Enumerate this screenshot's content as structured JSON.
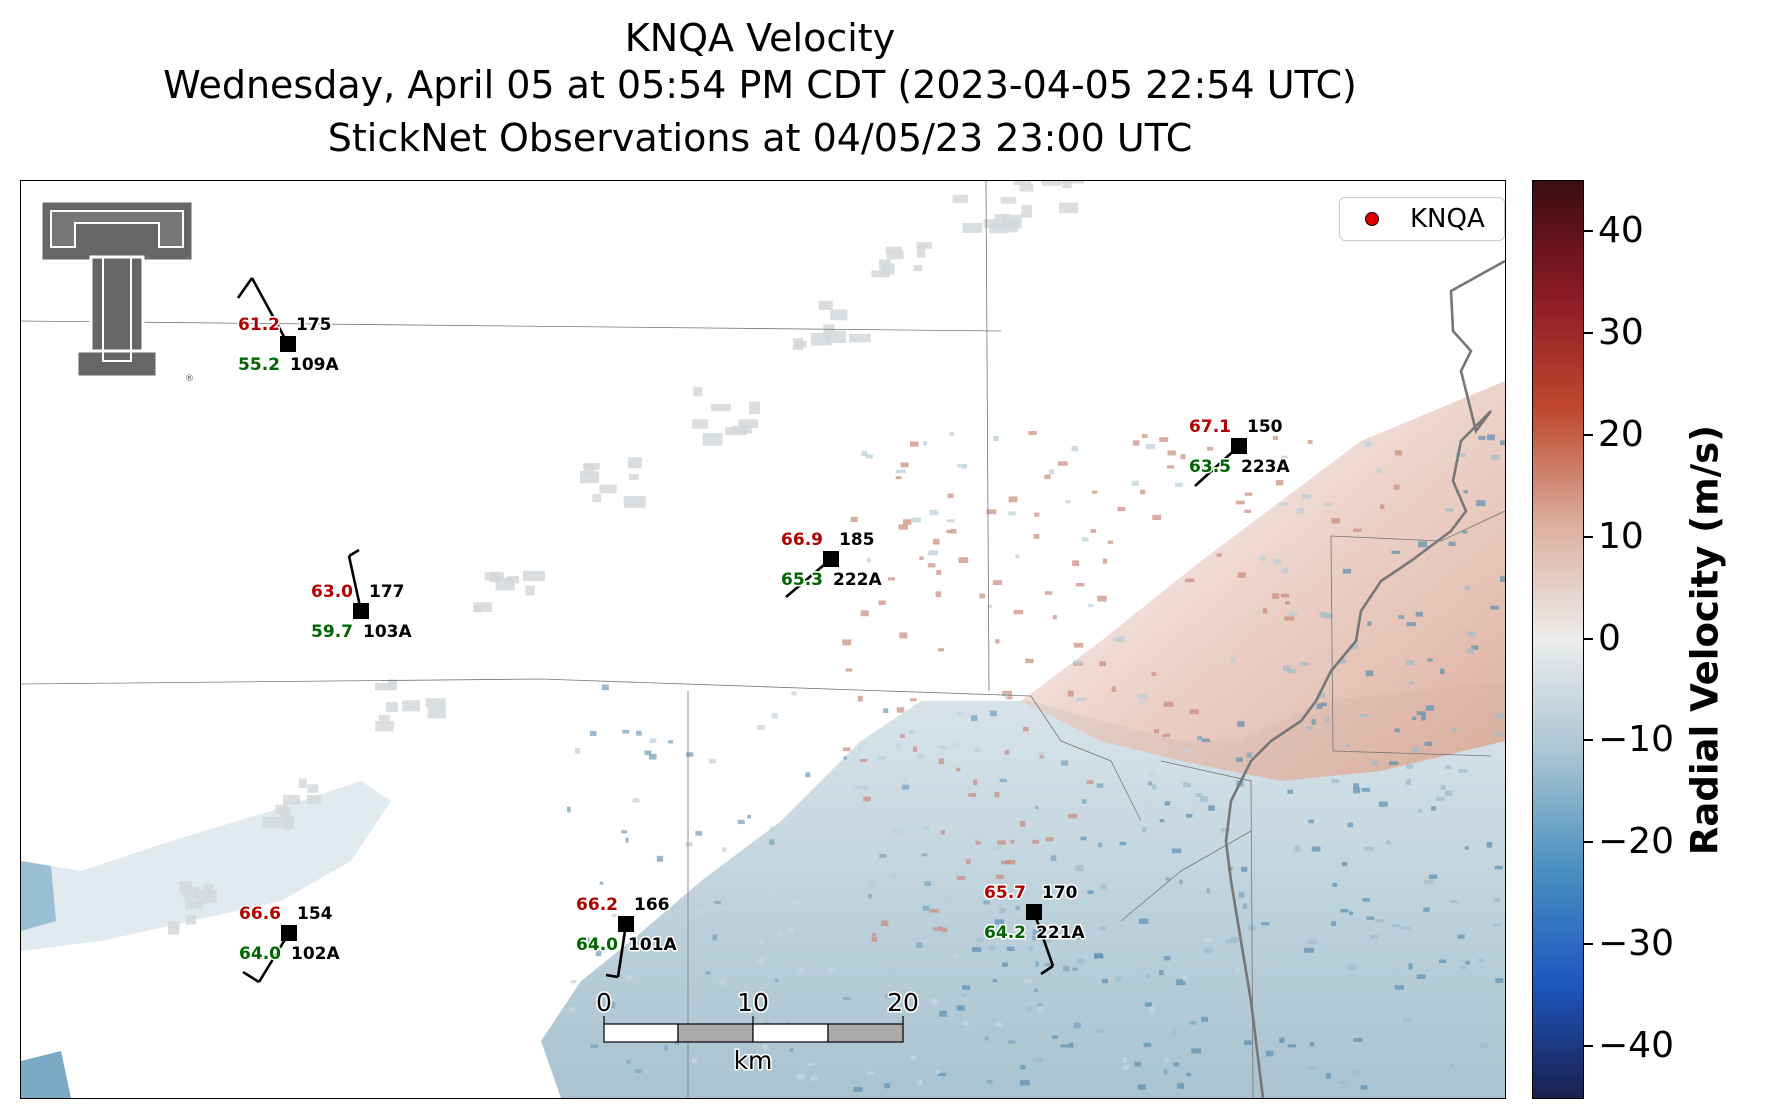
{
  "title": {
    "line1": "KNQA Velocity",
    "line2": "Wednesday, April 05 at 05:54 PM CDT (2023-04-05 22:54 UTC)",
    "line3": "StickNet Observations at 04/05/23 23:00 UTC"
  },
  "legend": {
    "label": "KNQA",
    "marker_color": "#e00000"
  },
  "colorbar": {
    "label": "Radial Velocity (m/s)",
    "ticks": [
      "40",
      "30",
      "20",
      "10",
      "0",
      "−10",
      "−20",
      "−30",
      "−40"
    ],
    "range": [
      -45,
      45
    ],
    "colormap_colors": [
      "#1a1f4d",
      "#1d57c0",
      "#4a90c0",
      "#a9c4d2",
      "#ececec",
      "#dcaf9e",
      "#c0482f",
      "#8c1a26",
      "#3b0d12"
    ]
  },
  "scalebar": {
    "ticks": [
      "0",
      "10",
      "20"
    ],
    "unit": "km"
  },
  "stations": [
    {
      "id": "109A",
      "temp": "61.2",
      "dew": "55.2",
      "dir": "175"
    },
    {
      "id": "103A",
      "temp": "63.0",
      "dew": "59.7",
      "dir": "177"
    },
    {
      "id": "222A",
      "temp": "66.9",
      "dew": "65.3",
      "dir": "185"
    },
    {
      "id": "223A",
      "temp": "67.1",
      "dew": "63.5",
      "dir": "150"
    },
    {
      "id": "102A",
      "temp": "66.6",
      "dew": "64.0",
      "dir": "154"
    },
    {
      "id": "101A",
      "temp": "66.2",
      "dew": "64.0",
      "dir": "166"
    },
    {
      "id": "221A",
      "temp": "65.7",
      "dew": "64.2",
      "dir": "170"
    }
  ],
  "colors": {
    "temp": "#b00000",
    "dew": "#006400",
    "station": "#000000"
  },
  "logo": {
    "icon": "double-t-logo-icon"
  }
}
